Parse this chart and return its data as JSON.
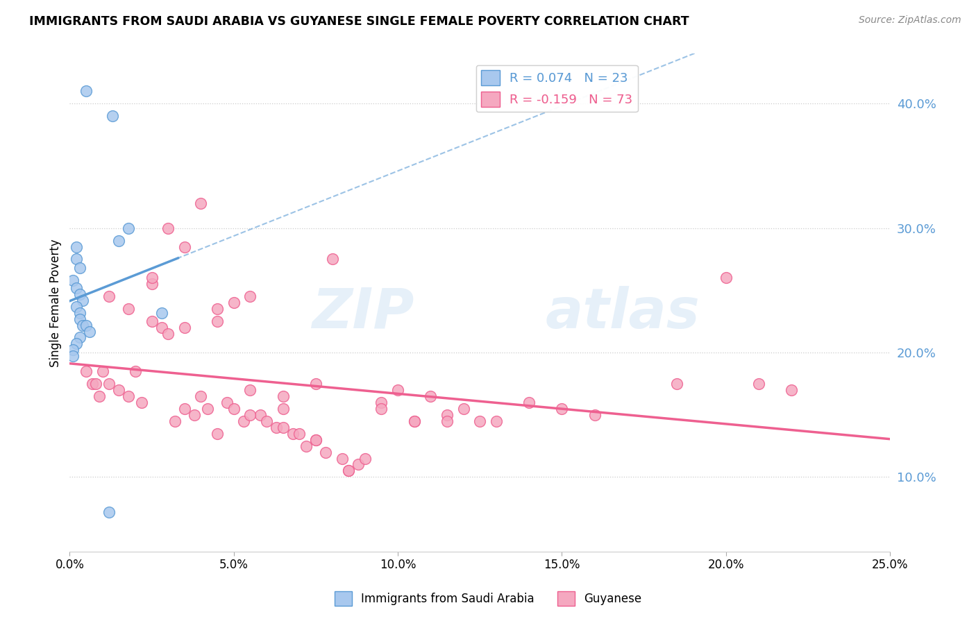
{
  "title": "IMMIGRANTS FROM SAUDI ARABIA VS GUYANESE SINGLE FEMALE POVERTY CORRELATION CHART",
  "source": "Source: ZipAtlas.com",
  "ylabel_label": "Single Female Poverty",
  "xlim": [
    0.0,
    0.25
  ],
  "ylim": [
    0.04,
    0.44
  ],
  "legend_r1": "R = 0.074",
  "legend_n1": "N = 23",
  "legend_r2": "R = -0.159",
  "legend_n2": "N = 73",
  "color_blue": "#A8C8EE",
  "color_pink": "#F5A8C0",
  "color_blue_dark": "#5B9BD5",
  "color_pink_dark": "#EE6090",
  "watermark_zip": "ZIP",
  "watermark_atlas": "atlas",
  "saudi_x": [
    0.005,
    0.013,
    0.018,
    0.015,
    0.002,
    0.002,
    0.003,
    0.001,
    0.002,
    0.003,
    0.004,
    0.002,
    0.003,
    0.003,
    0.004,
    0.005,
    0.006,
    0.003,
    0.002,
    0.001,
    0.001,
    0.028,
    0.012
  ],
  "saudi_y": [
    0.41,
    0.39,
    0.3,
    0.29,
    0.285,
    0.275,
    0.268,
    0.258,
    0.252,
    0.247,
    0.242,
    0.237,
    0.232,
    0.227,
    0.222,
    0.222,
    0.217,
    0.212,
    0.207,
    0.202,
    0.197,
    0.232,
    0.072
  ],
  "guyanese_x": [
    0.005,
    0.007,
    0.009,
    0.012,
    0.015,
    0.018,
    0.02,
    0.022,
    0.025,
    0.028,
    0.03,
    0.032,
    0.035,
    0.038,
    0.04,
    0.042,
    0.045,
    0.048,
    0.05,
    0.053,
    0.055,
    0.058,
    0.06,
    0.063,
    0.065,
    0.068,
    0.07,
    0.072,
    0.075,
    0.078,
    0.08,
    0.083,
    0.085,
    0.088,
    0.09,
    0.095,
    0.1,
    0.105,
    0.11,
    0.115,
    0.12,
    0.125,
    0.13,
    0.14,
    0.15,
    0.16,
    0.185,
    0.2,
    0.21,
    0.22,
    0.008,
    0.012,
    0.018,
    0.025,
    0.03,
    0.035,
    0.04,
    0.045,
    0.05,
    0.055,
    0.065,
    0.075,
    0.085,
    0.095,
    0.105,
    0.115,
    0.055,
    0.065,
    0.075,
    0.025,
    0.035,
    0.045,
    0.01
  ],
  "guyanese_y": [
    0.185,
    0.175,
    0.165,
    0.245,
    0.17,
    0.235,
    0.185,
    0.16,
    0.255,
    0.22,
    0.3,
    0.145,
    0.285,
    0.15,
    0.32,
    0.155,
    0.235,
    0.16,
    0.24,
    0.145,
    0.245,
    0.15,
    0.145,
    0.14,
    0.155,
    0.135,
    0.135,
    0.125,
    0.13,
    0.12,
    0.275,
    0.115,
    0.105,
    0.11,
    0.115,
    0.16,
    0.17,
    0.145,
    0.165,
    0.15,
    0.155,
    0.145,
    0.145,
    0.16,
    0.155,
    0.15,
    0.175,
    0.26,
    0.175,
    0.17,
    0.175,
    0.175,
    0.165,
    0.225,
    0.215,
    0.155,
    0.165,
    0.135,
    0.155,
    0.15,
    0.14,
    0.13,
    0.105,
    0.155,
    0.145,
    0.145,
    0.17,
    0.165,
    0.175,
    0.26,
    0.22,
    0.225,
    0.185
  ]
}
